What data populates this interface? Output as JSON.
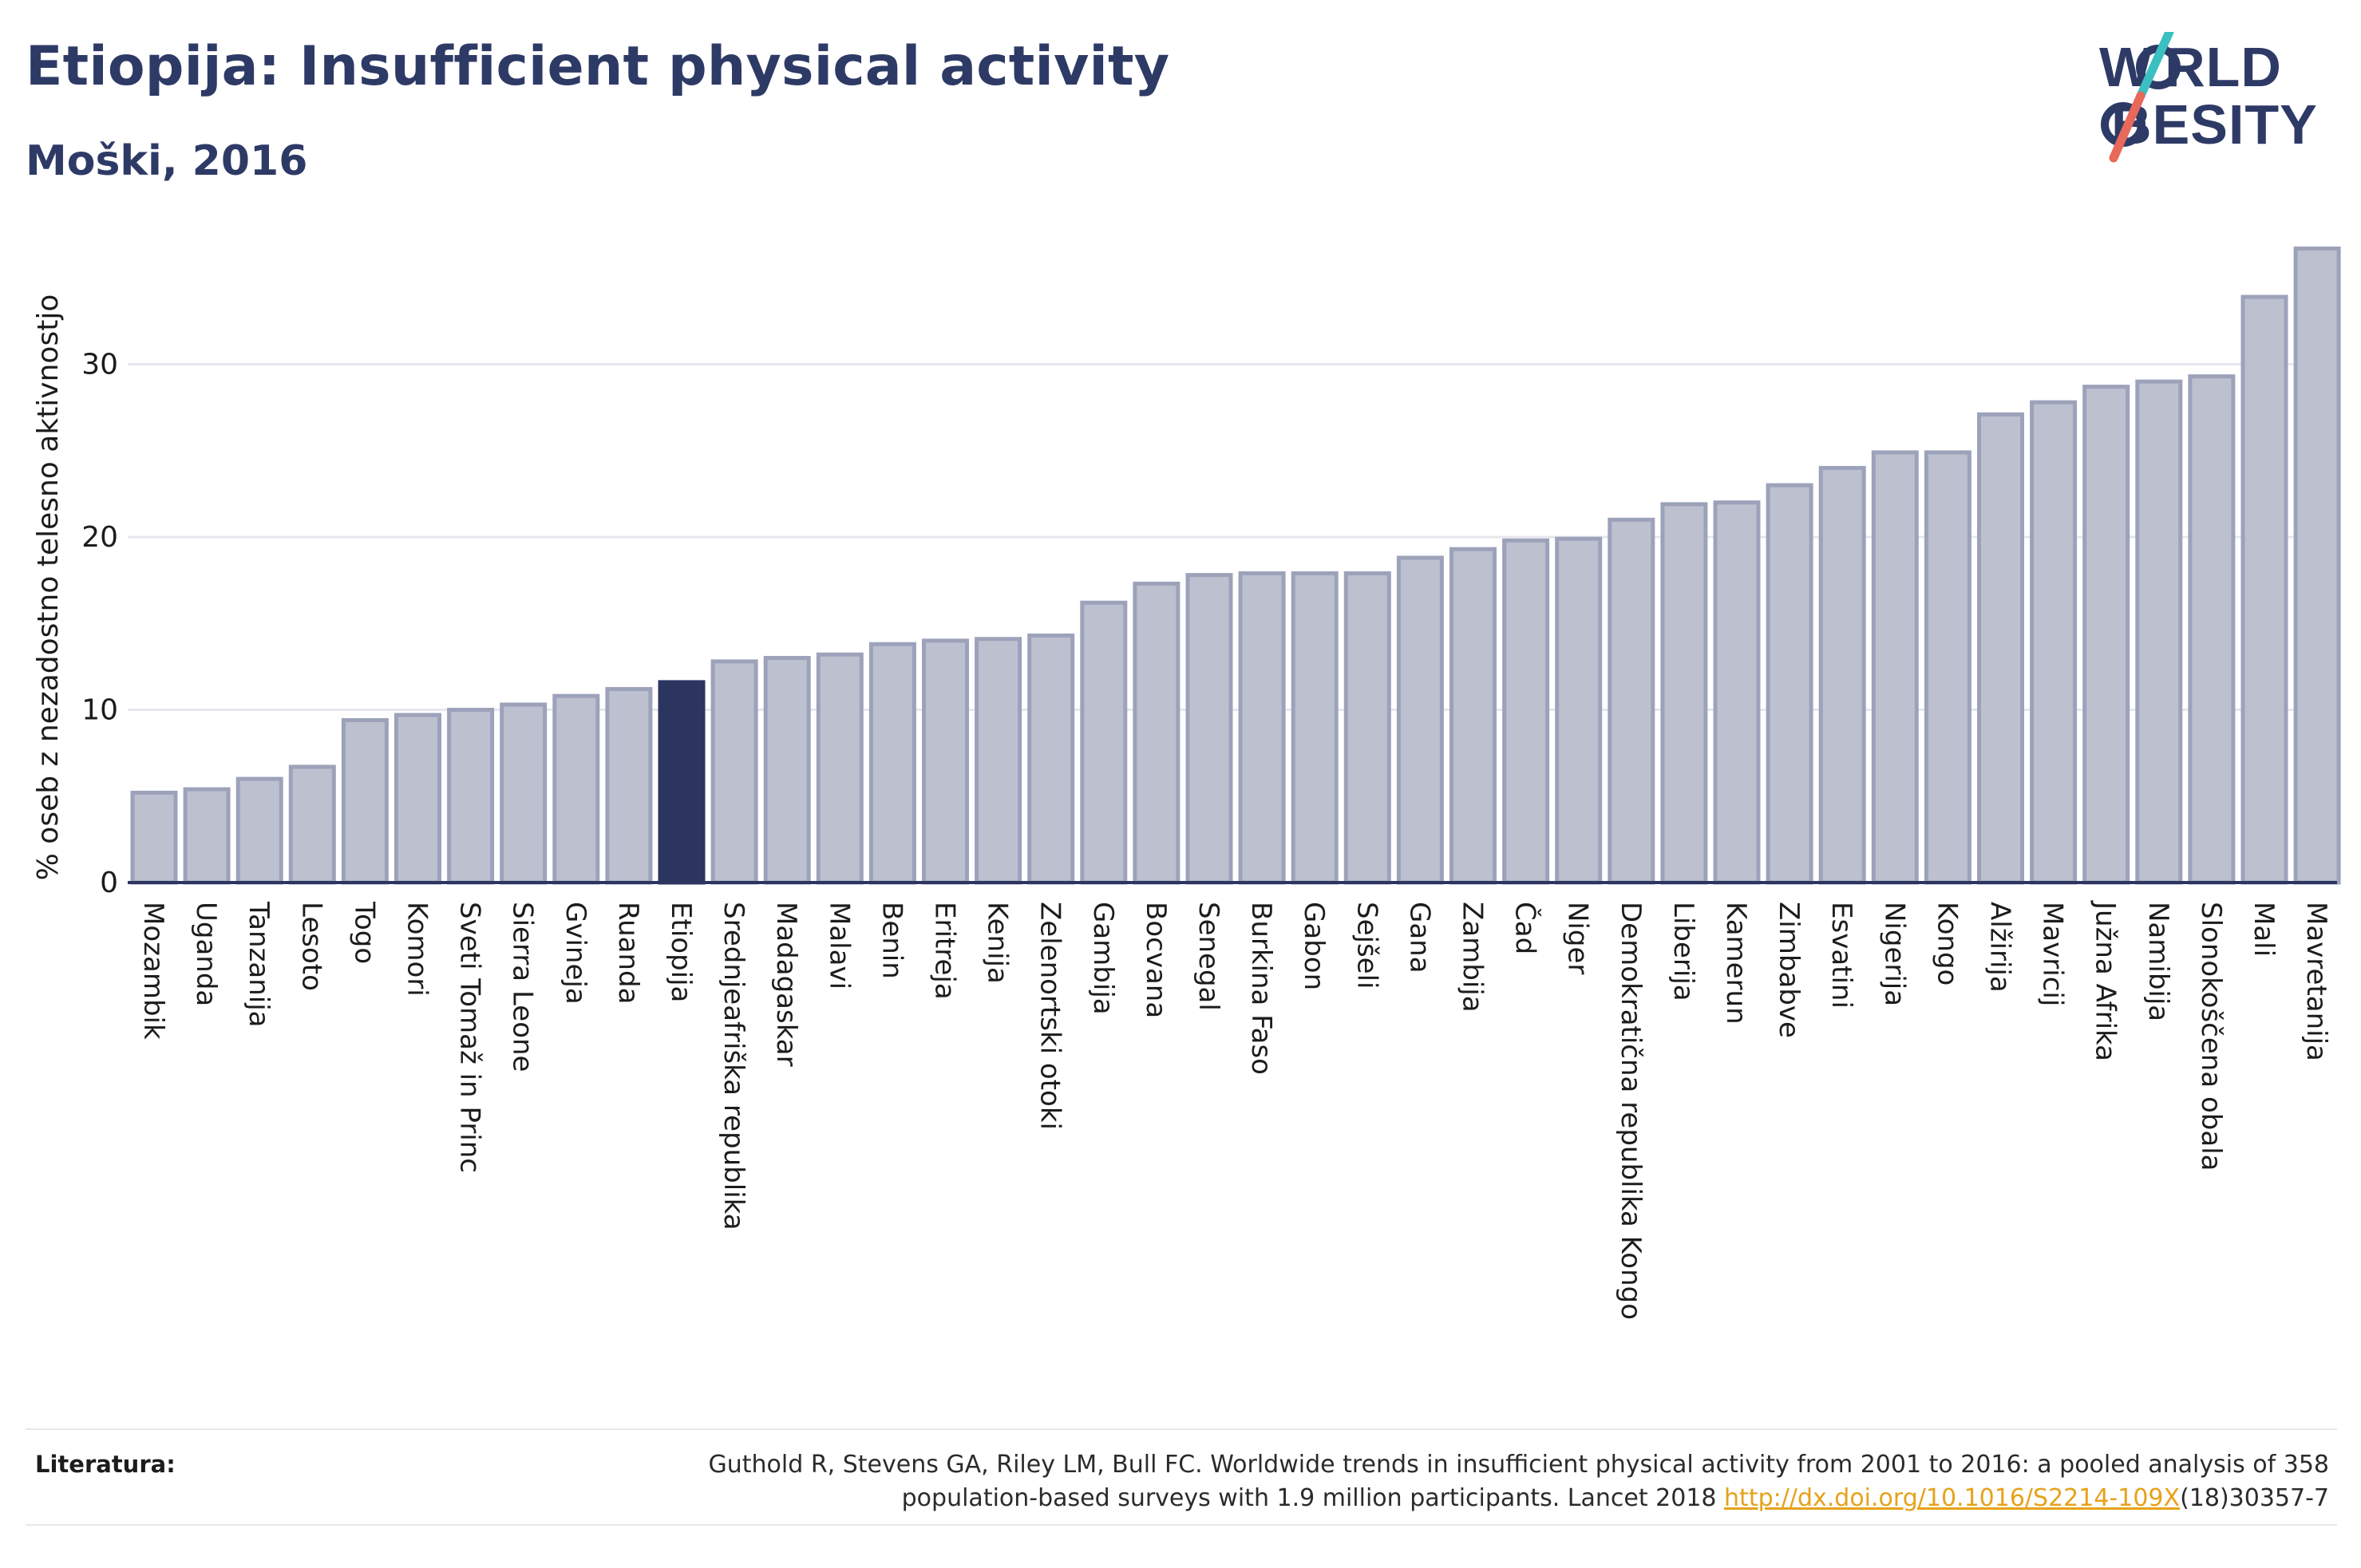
{
  "header": {
    "title": "Etiopija: Insufficient physical activity",
    "subtitle": "Moški, 2016"
  },
  "logo": {
    "line1": "W RLD",
    "line2": " BESITY",
    "text": "WORLD OBESITY",
    "slash_colors": [
      "#3bbfc0",
      "#e8685a"
    ]
  },
  "chart_data": {
    "type": "bar",
    "title": "Etiopija: Insufficient physical activity",
    "subtitle": "Moški, 2016",
    "ylabel": "% oseb z nezadostno telesno aktivnostjo",
    "xlabel": "",
    "ylim": [
      0,
      37
    ],
    "yticks": [
      0,
      10,
      20,
      30
    ],
    "grid": true,
    "highlight": "Etiopija",
    "colors": {
      "bar": "#bcc0cf",
      "bar_edge": "#9da2bb",
      "highlight": "#2c3560",
      "grid": "#e6e7ee",
      "axis": "#2c3560"
    },
    "categories": [
      "Mozambik",
      "Uganda",
      "Tanzanija",
      "Lesoto",
      "Togo",
      "Komori",
      "Sveti Tomaž in Princ",
      "Sierra Leone",
      "Gvineja",
      "Ruanda",
      "Etiopija",
      "Srednjeafriška republika",
      "Madagaskar",
      "Malavi",
      "Benin",
      "Eritreja",
      "Kenija",
      "Zelenortski otoki",
      "Gambija",
      "Bocvana",
      "Senegal",
      "Burkina Faso",
      "Gabon",
      "Sejšeli",
      "Gana",
      "Zambija",
      "Čad",
      "Niger",
      "Demokratična republika Kongo",
      "Liberija",
      "Kamerun",
      "Zimbabve",
      "Esvatini",
      "Nigerija",
      "Kongo",
      "Alžirija",
      "Mavricij",
      "Južna Afrika",
      "Namibija",
      "Slonokoščena obala",
      "Mali",
      "Mavretanija"
    ],
    "values": [
      5.2,
      5.4,
      6.0,
      6.7,
      9.4,
      9.7,
      10.0,
      10.3,
      10.8,
      11.2,
      11.6,
      12.8,
      13.0,
      13.2,
      13.8,
      14.0,
      14.1,
      14.3,
      16.2,
      17.3,
      17.8,
      17.9,
      17.9,
      17.9,
      18.8,
      19.3,
      19.8,
      19.9,
      21.0,
      21.9,
      22.0,
      23.0,
      24.0,
      24.9,
      24.9,
      27.1,
      27.8,
      28.7,
      29.0,
      29.3,
      33.9,
      36.7
    ]
  },
  "footer": {
    "ref_label": "Literatura:",
    "ref_text_1": "Guthold R, Stevens GA, Riley LM, Bull FC. Worldwide trends in insufficient physical activity from 2001 to 2016: a pooled analysis of 358",
    "ref_text_2": "population-based surveys with 1.9 million participants. Lancet 2018 ",
    "ref_link": "http://dx.doi.org/10.1016/S2214-109X",
    "ref_text_3": "(18)30357-7"
  }
}
